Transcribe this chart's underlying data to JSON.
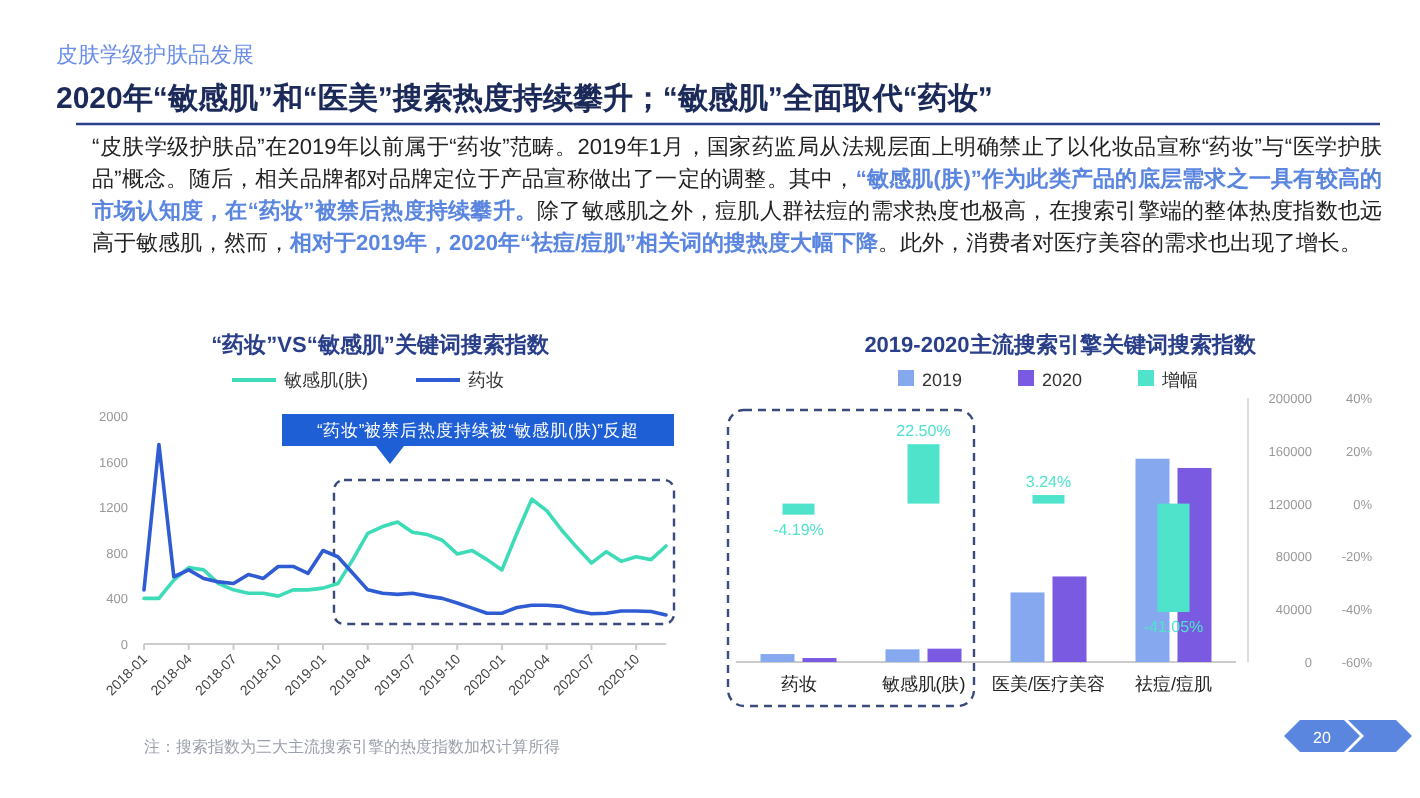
{
  "chart_data": [
    {
      "type": "other",
      "subtitle": "皮肤学级护肤品发展",
      "title": "2020年“敏感肌”和“医美”搜索热度持续攀升；“敏感肌”全面取代“药妆”",
      "annotations": [
        "“皮肤学级护肤品”在2019年以前属于“药妆”范畴。2019年1月，国家药监局从法规层面上明确禁止了以化妆品宣称“药妆”与“医学护肤品”概念。随后，相关品牌都对品牌定位于产品宣称做出了一定的调整。其中，**“敏感肌(肤)”作为此类产品的底层需求之一具有较高的市场认知度，在“药妆”被禁后热度持续攀升。**除了敏感肌之外，痘肌人群祛痘的需求热度也极高，在搜索引擎端的整体热度指数也远高于敏感肌，然而，**相对于2019年，2020年“祛痘/痘肌”相关词的搜热度大幅下降**。此外，消费者对医疗美容的需求也出现了增长。",
        "注：搜索指数为三大主流搜索引擎的热度指数加权计算所得",
        "20"
      ]
    },
    {
      "type": "line",
      "title": "“药妆”VS“敏感肌”关键词搜索指数",
      "legend": "top",
      "grid": false,
      "x": [
        "2018-01",
        "2018-02",
        "2018-03",
        "2018-04",
        "2018-05",
        "2018-06",
        "2018-07",
        "2018-08",
        "2018-09",
        "2018-10",
        "2018-11",
        "2018-12",
        "2019-01",
        "2019-02",
        "2019-03",
        "2019-04",
        "2019-05",
        "2019-06",
        "2019-07",
        "2019-08",
        "2019-09",
        "2019-10",
        "2019-11",
        "2019-12",
        "2020-01",
        "2020-02",
        "2020-03",
        "2020-04",
        "2020-05",
        "2020-06",
        "2020-07",
        "2020-08",
        "2020-09",
        "2020-10",
        "2020-11",
        "2020-12"
      ],
      "xlim": [
        "2018-01",
        "2020-12"
      ],
      "xticks": [
        "2018-01",
        "2018-04",
        "2018-07",
        "2018-10",
        "2019-01",
        "2019-04",
        "2019-07",
        "2019-10",
        "2020-01",
        "2020-04",
        "2020-07",
        "2020-10"
      ],
      "ylim": [
        0,
        2000
      ],
      "yticks": [
        0,
        400,
        800,
        1200,
        1600,
        2000
      ],
      "series": [
        {
          "name": "敏感肌(肤)",
          "color": "#3ddbb8",
          "values": [
            400,
            400,
            560,
            670,
            650,
            530,
            475,
            445,
            445,
            420,
            475,
            475,
            490,
            530,
            740,
            970,
            1030,
            1070,
            980,
            960,
            910,
            790,
            820,
            740,
            650,
            970,
            1270,
            1170,
            1000,
            850,
            710,
            810,
            725,
            765,
            740,
            860
          ]
        },
        {
          "name": "药妆",
          "color": "#2f5bd3",
          "values": [
            475,
            1750,
            590,
            650,
            575,
            545,
            530,
            610,
            575,
            680,
            680,
            620,
            820,
            765,
            620,
            475,
            445,
            435,
            445,
            420,
            400,
            360,
            315,
            270,
            270,
            320,
            340,
            340,
            330,
            290,
            265,
            270,
            290,
            290,
            285,
            255
          ]
        }
      ],
      "annotations": [
        "“药妆”被禁后热度持续被“敏感肌(肤)”反超"
      ]
    },
    {
      "type": "bar",
      "title": "2019-2020主流搜索引擎关键词搜索指数",
      "legend": "top",
      "categories": [
        "药妆",
        "敏感肌(肤)",
        "医美/医疗美容",
        "祛痘/痘肌"
      ],
      "ylim": [
        0,
        200000
      ],
      "yticks": [
        0,
        40000,
        80000,
        120000,
        160000,
        200000
      ],
      "y2lim": [
        -60,
        40
      ],
      "y2ticks": [
        {
          "value": -60,
          "label": "-60%"
        },
        {
          "value": -40,
          "label": "-40%"
        },
        {
          "value": -20,
          "label": "-20%"
        },
        {
          "value": 0,
          "label": "0%"
        },
        {
          "value": 20,
          "label": "20%"
        },
        {
          "value": 40,
          "label": "40%"
        }
      ],
      "series": [
        {
          "name": "2019",
          "color": "#86a8ef",
          "values": [
            6000,
            9600,
            52700,
            154000
          ]
        },
        {
          "name": "2020",
          "color": "#7a5ae0",
          "values": [
            3000,
            10100,
            64800,
            147000
          ]
        },
        {
          "name": "增幅",
          "color": "#4fe3cc",
          "axis": "y2",
          "values": [
            -4.19,
            22.5,
            3.24,
            -41.05
          ],
          "value_labels": [
            "-4.19%",
            "22.50%",
            "3.24%",
            "-41.05%"
          ]
        }
      ]
    }
  ]
}
